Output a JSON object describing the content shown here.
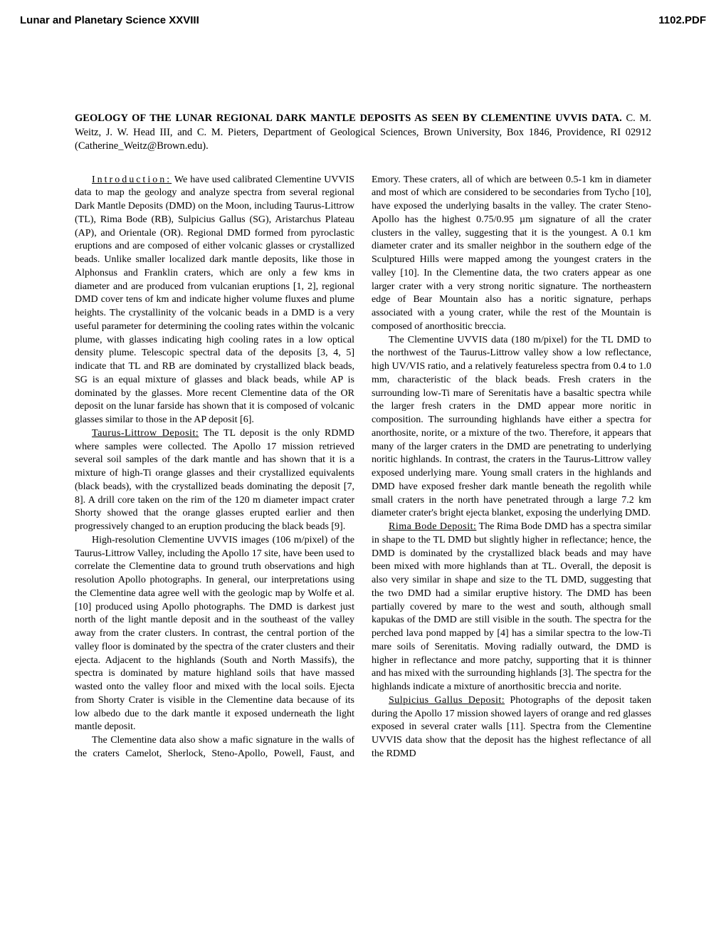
{
  "header": {
    "left": "Lunar and Planetary Science XXVIII",
    "right": "1102.PDF"
  },
  "title": {
    "bold": "GEOLOGY OF THE LUNAR REGIONAL DARK MANTLE DEPOSITS AS SEEN BY CLEMENTINE UVVIS DATA.",
    "rest": "  C. M. Weitz, J. W. Head III, and C. M. Pieters, Department of Geological Sciences, Brown University, Box 1846, Providence, RI  02912 (Catherine_Weitz@Brown.edu)."
  },
  "paragraphs": {
    "p1_head": "Introduction:",
    "p1": "  We have used calibrated Clementine UVVIS data to map the geology and analyze spectra from several regional Dark Mantle Deposits (DMD) on the Moon, including Taurus-Littrow (TL), Rima Bode (RB), Sulpicius Gallus (SG), Aristarchus Plateau (AP), and Orientale (OR).  Regional DMD formed from pyroclastic eruptions and are composed of either volcanic glasses or crystallized beads.  Unlike smaller localized dark mantle deposits, like those in Alphonsus and Franklin craters, which are only a few kms in diameter and are produced from vulcanian eruptions [1, 2], regional DMD cover tens of km and indicate higher volume fluxes and plume heights.  The crystallinity of the volcanic beads in a DMD is a very useful parameter for determining the cooling rates within the volcanic plume, with glasses indicating high cooling rates in a low optical density plume.  Telescopic spectral data of the deposits [3, 4, 5] indicate that TL and RB are dominated by crystallized black beads, SG is an equal mixture of glasses and black beads, while AP is dominated by the glasses.  More recent Clementine data of the OR deposit on the lunar farside has shown that it is composed of volcanic glasses similar to those in the AP deposit [6].",
    "p2_head": "Taurus-Littrow Deposit:",
    "p2": "  The TL deposit is the only RDMD where samples were collected.  The Apollo 17 mission retrieved several soil samples of the dark mantle and has shown that it is a mixture of high-Ti orange glasses and their crystallized equivalents (black beads), with the crystallized beads dominating the deposit [7, 8].  A drill core taken on the rim of the 120 m diameter impact crater Shorty showed that the orange glasses erupted earlier and then progressively changed to an eruption producing the black beads [9].",
    "p3": "High-resolution Clementine UVVIS images (106 m/pixel) of the Taurus-Littrow Valley, including the Apollo 17 site, have been used to correlate the Clementine data to ground truth observations and high resolution Apollo photographs.  In general, our interpretations using the Clementine data agree well with the geologic map by Wolfe et al. [10] produced using Apollo photographs.  The DMD is darkest just north of the light mantle deposit and in the southeast of the valley away from the crater clusters.  In contrast, the central portion of the valley floor is dominated by the spectra of the crater clusters and their ejecta.  Adjacent to the highlands (South and North Massifs), the spectra is dominated by mature highland soils that have massed wasted onto the valley floor and mixed with the local soils.  Ejecta from Shorty Crater is visible in the Clementine data because of its low albedo due to the dark mantle it exposed underneath the light mantle deposit.",
    "p4": "The Clementine data also show a mafic signature in the walls of the craters Camelot, Sherlock, Steno-Apollo, Powell, Faust, and Emory.  These craters, all of which are between 0.5-1 km in diameter and most of which are considered to be secondaries from Tycho [10], have exposed the underlying basalts in the valley.  The crater Steno-Apollo has the highest 0.75/0.95 µm signature of all the crater clusters in the valley, suggesting that it is the youngest.  A 0.1 km diameter crater and its smaller neighbor in the southern edge of the Sculptured Hills were mapped among the youngest craters in the valley [10].  In the Clementine data, the two craters appear as one larger crater with a very strong noritic signature.  The northeastern edge of Bear Mountain also has a noritic signature, perhaps associated with a young crater, while the rest of the Mountain is composed of anorthositic breccia.",
    "p5": "The Clementine UVVIS data (180 m/pixel) for the TL DMD to the northwest of the Taurus-Littrow valley show a low reflectance, high UV/VIS ratio, and a relatively featureless spectra from 0.4 to 1.0 mm, characteristic of the black beads.  Fresh craters in the surrounding low-Ti mare of Serenitatis have a basaltic spectra while the larger fresh craters in the DMD appear more noritic in composition.  The surrounding highlands have either a spectra for anorthosite, norite, or a mixture of the two.  Therefore, it appears that many of the larger craters in the DMD are penetrating to underlying noritic highlands.  In contrast, the craters in the Taurus-Littrow valley exposed underlying mare.  Young small craters in the highlands and DMD have exposed fresher dark mantle beneath the regolith while small craters in the north have penetrated through a large 7.2 km diameter crater's bright ejecta blanket, exposing the underlying DMD.",
    "p6_head": "Rima Bode Deposit:",
    "p6": "  The Rima Bode DMD has a spectra similar in shape to the TL DMD but slightly higher in reflectance; hence, the DMD is dominated by the crystallized black beads and may have been mixed with more highlands than at TL.  Overall, the deposit is also very similar in shape and size to the TL DMD, suggesting that the two DMD had a similar eruptive history.  The DMD has been partially covered by mare to the west and south, although small kapukas of the DMD are still visible in the south.  The spectra for the perched lava pond mapped by [4] has a similar spectra to the low-Ti mare soils of Serenitatis.  Moving radially outward, the DMD is higher in reflectance and more patchy, supporting that it is thinner and has mixed with the surrounding highlands [3].  The spectra for the highlands indicate a mixture of anorthositic breccia and norite.",
    "p7_head": "Sulpicius Gallus Deposit:",
    "p7": "  Photographs of the deposit taken during the Apollo 17 mission showed layers of orange and red glasses exposed in several crater walls [11].  Spectra from the Clementine UVVIS data show that the deposit has the highest reflectance of all the RDMD"
  }
}
